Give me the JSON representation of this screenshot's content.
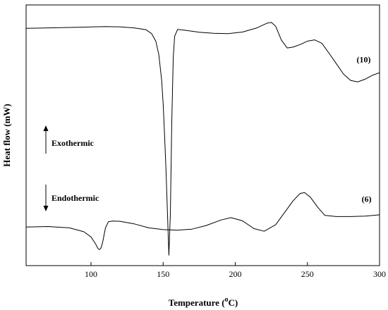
{
  "chart_data": {
    "type": "line",
    "title": "",
    "xlabel": "Temperature (",
    "xlabel_sup": "o",
    "xlabel_tail": "C)",
    "ylabel": "Heat flow (mW)",
    "xlim": [
      55,
      300
    ],
    "ylim": [
      0,
      100
    ],
    "x_ticks": [
      100,
      150,
      200,
      250,
      300
    ],
    "x_tick_labels": [
      "100",
      "150",
      "200",
      "250",
      "300"
    ],
    "y_ticks_labeled": false,
    "grid": false,
    "series": [
      {
        "name": "(10)",
        "x": [
          55,
          70,
          90,
          110,
          120,
          130,
          138,
          142,
          145,
          147,
          149,
          150,
          151,
          152,
          153,
          154,
          155,
          156,
          157,
          158,
          160,
          165,
          175,
          185,
          195,
          205,
          215,
          222,
          225,
          228,
          232,
          236,
          240,
          245,
          250,
          255,
          260,
          265,
          270,
          275,
          280,
          285,
          290,
          295,
          300
        ],
        "y": [
          91,
          91.2,
          91.4,
          91.7,
          91.6,
          91.2,
          90.5,
          89,
          86,
          81,
          71,
          62,
          50,
          36,
          20,
          4,
          20,
          55,
          80,
          88,
          90.6,
          90.3,
          89.5,
          89.1,
          89,
          89.6,
          91.2,
          93,
          93.3,
          91.8,
          86.5,
          83.5,
          83.8,
          84.8,
          86.1,
          86.6,
          85.3,
          81.5,
          77.5,
          73.5,
          71,
          70.5,
          71.5,
          73,
          74
        ]
      },
      {
        "name": "(6)",
        "x": [
          55,
          70,
          85,
          95,
          100,
          103,
          105,
          106,
          107,
          108,
          110,
          112,
          115,
          120,
          130,
          140,
          150,
          160,
          170,
          180,
          190,
          197,
          205,
          213,
          220,
          228,
          235,
          240,
          245,
          248,
          252,
          257,
          262,
          270,
          280,
          290,
          300
        ],
        "y": [
          14.8,
          15,
          14.5,
          13,
          11,
          8.5,
          6.4,
          6.2,
          6.8,
          8.8,
          14.5,
          16.8,
          17.1,
          17,
          16,
          14.5,
          13.8,
          13.6,
          14,
          15.4,
          17.5,
          18.4,
          17.2,
          14.2,
          13.2,
          15.7,
          21,
          24.8,
          27.7,
          28,
          26.3,
          22.5,
          19.3,
          18.8,
          18.8,
          19,
          19.5
        ]
      }
    ],
    "annotations": [
      {
        "text": "(10)",
        "x": 289,
        "y": 78
      },
      {
        "text": "(6)",
        "x": 291,
        "y": 24.5
      },
      {
        "text": "Exothermic",
        "arrow": "up"
      },
      {
        "text": "Endothermic",
        "arrow": "down"
      }
    ]
  }
}
